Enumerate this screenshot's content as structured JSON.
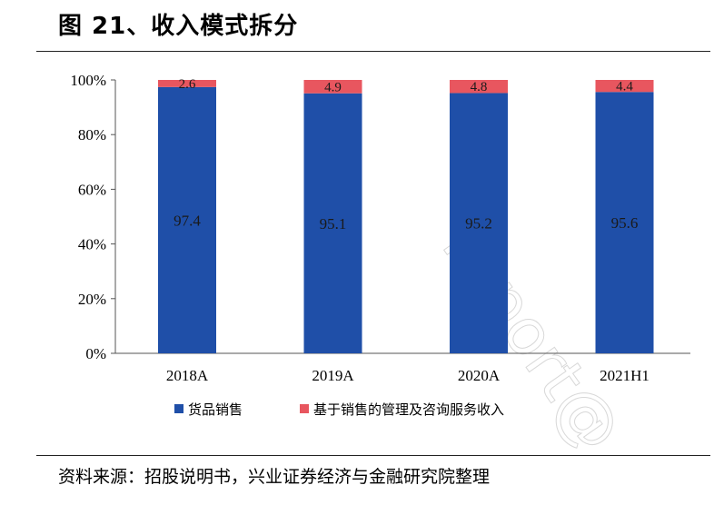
{
  "figure": {
    "title": "图 21、收入模式拆分",
    "source": "资料来源：招股说明书，兴业证券经济与金融研究院整理",
    "watermark": "report@"
  },
  "chart_data": {
    "type": "bar",
    "stacked": true,
    "percent_axis": true,
    "categories": [
      "2018A",
      "2019A",
      "2020A",
      "2021H1"
    ],
    "series": [
      {
        "name": "货品销售",
        "color": "#1f4fa8",
        "values": [
          97.4,
          95.1,
          95.2,
          95.6
        ]
      },
      {
        "name": "基于销售的管理及咨询服务收入",
        "color": "#e8565f",
        "values": [
          2.6,
          4.9,
          4.8,
          4.4
        ]
      }
    ],
    "ylim": [
      0,
      100
    ],
    "yticks": [
      "0%",
      "20%",
      "40%",
      "60%",
      "80%",
      "100%"
    ],
    "grid": false,
    "legend_position": "bottom"
  }
}
